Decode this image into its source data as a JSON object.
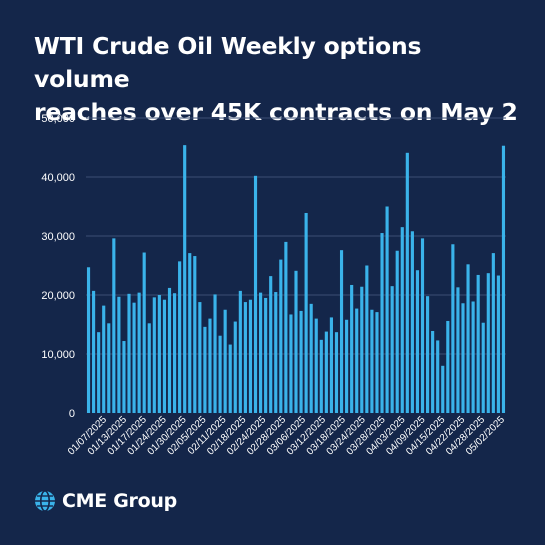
{
  "title_line1": "WTI Crude Oil Weekly options volume",
  "title_line2": "reaches over 45K contracts on May 2",
  "brand": "CME Group",
  "colors": {
    "background": "#14264a",
    "bar": "#3ab3ea",
    "grid": "#3b4f74",
    "text": "#ffffff"
  },
  "logo_icon": "globe-icon",
  "chart_data": {
    "type": "bar",
    "title": "WTI Crude Oil Weekly options volume reaches over 45K contracts on May 2",
    "xlabel": "",
    "ylabel": "",
    "ylim": [
      0,
      50000
    ],
    "y_ticks": [
      "0",
      "10,000",
      "20,000",
      "30,000",
      "40,000",
      "50,000"
    ],
    "y_tick_values": [
      0,
      10000,
      20000,
      30000,
      40000,
      50000
    ],
    "grid": true,
    "legend": "none",
    "x_tick_labels": [
      "01/07/2025",
      "01/13/2025",
      "01/17/2025",
      "01/24/2025",
      "01/30/2025",
      "02/05/2025",
      "02/11/2025",
      "02/18/2025",
      "02/24/2025",
      "02/28/2025",
      "03/06/2025",
      "03/12/2025",
      "03/18/2025",
      "03/24/2025",
      "03/28/2025",
      "04/03/2025",
      "04/09/2025",
      "04/15/2025",
      "04/22/2025",
      "04/28/2025",
      "05/02/2025"
    ],
    "values": [
      24700,
      20700,
      13700,
      18200,
      15200,
      29600,
      19700,
      12200,
      20200,
      18700,
      20400,
      27200,
      15200,
      19600,
      20000,
      19200,
      21200,
      20300,
      25700,
      45400,
      27100,
      26600,
      18800,
      14600,
      16000,
      20100,
      13100,
      17500,
      11600,
      15500,
      20700,
      18800,
      19200,
      40200,
      20400,
      19500,
      23200,
      20500,
      26000,
      29000,
      16700,
      24100,
      17300,
      33900,
      18500,
      16000,
      12400,
      13800,
      16200,
      13700,
      27600,
      15800,
      21700,
      17700,
      21400,
      25000,
      17500,
      17100,
      30500,
      35000,
      21500,
      27500,
      31500,
      44100,
      30800,
      24200,
      29600,
      19800,
      13900,
      12300,
      8000,
      15600,
      28600,
      21300,
      18600,
      25200,
      18900,
      23400,
      15300,
      23700,
      27100,
      23300,
      45300
    ]
  }
}
